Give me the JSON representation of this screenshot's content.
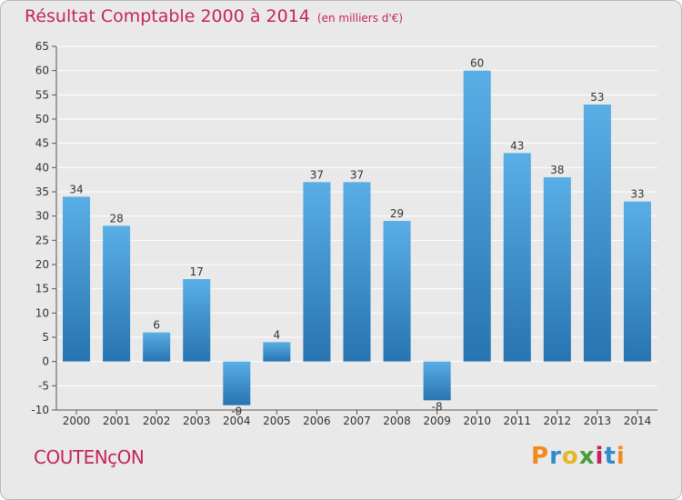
{
  "title": "Résultat Comptable 2000 à 2014",
  "subtitle": "(en milliers d'€)",
  "commune": "COUTENçON",
  "logo": {
    "text": "Proxiti",
    "letters": [
      {
        "char": "P",
        "color": "#f08a1d"
      },
      {
        "char": "r",
        "color": "#2f8bd0"
      },
      {
        "char": "o",
        "color": "#e6b722"
      },
      {
        "char": "x",
        "color": "#4a9e3a"
      },
      {
        "char": "i",
        "color": "#c6235e"
      },
      {
        "char": "t",
        "color": "#2f8bd0"
      },
      {
        "char": "i",
        "color": "#f08a1d"
      }
    ]
  },
  "colors": {
    "title": "#c6235e",
    "bar_top": "#5aaee6",
    "bar_bottom": "#2774b0",
    "background": "#e9e9e9",
    "grid": "#ffffff",
    "axis": "#555555",
    "label": "#333333"
  },
  "chart_data": {
    "type": "bar",
    "title": "Résultat Comptable 2000 à 2014",
    "subtitle": "(en milliers d'€)",
    "xlabel": "",
    "ylabel": "",
    "categories": [
      "2000",
      "2001",
      "2002",
      "2003",
      "2004",
      "2005",
      "2006",
      "2007",
      "2008",
      "2009",
      "2010",
      "2011",
      "2012",
      "2013",
      "2014"
    ],
    "values": [
      34,
      28,
      6,
      17,
      -9,
      4,
      37,
      37,
      29,
      -8,
      60,
      43,
      38,
      53,
      33
    ],
    "value_labels": [
      "34",
      "28",
      "6",
      "17",
      "-9",
      "4",
      "37",
      "37",
      "29",
      "-8",
      "60",
      "43",
      "38",
      "53",
      "33"
    ],
    "ylim": [
      -10,
      65
    ],
    "yticks": [
      -10,
      -5,
      0,
      5,
      10,
      15,
      20,
      25,
      30,
      35,
      40,
      45,
      50,
      55,
      60,
      65
    ],
    "grid": true,
    "legend": "none"
  }
}
